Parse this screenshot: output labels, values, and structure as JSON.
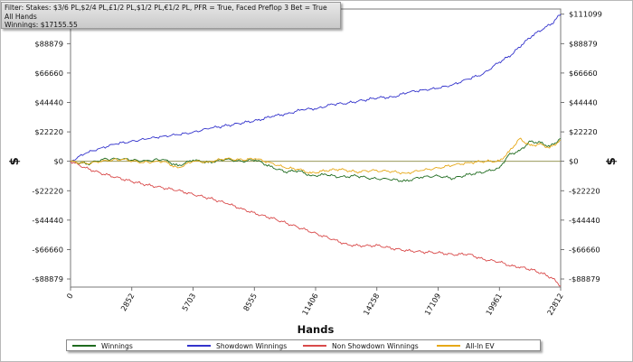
{
  "filter": {
    "line1": "Filter: Stakes: $3/6 PL,$2/4 PL,£1/2 PL,$1/2 PL,€1/2 PL, PFR = True, Faced Preflop 3 Bet = True",
    "line2": "All Hands",
    "line3": "Winnings: $17155.55"
  },
  "chart_data": {
    "type": "line",
    "xlabel": "Hands",
    "ylabel": "$",
    "xlim": [
      0,
      22812
    ],
    "ylim": [
      -95000,
      115000
    ],
    "x_ticks": [
      0,
      2852,
      5703,
      8555,
      11406,
      14258,
      17109,
      19961,
      22812
    ],
    "x_tick_labels": [
      "0",
      "2852",
      "5703",
      "8555",
      "11406",
      "14258",
      "17109",
      "19961",
      "22812"
    ],
    "y_ticks": [
      111099,
      88879,
      66660,
      44440,
      22220,
      0,
      -22220,
      -44440,
      -66660,
      -88879
    ],
    "y_tick_labels": [
      "$111099",
      "$88879",
      "$66660",
      "$44440",
      "$22220",
      "$0",
      "-$22220",
      "-$44440",
      "-$66660",
      "-$88879"
    ],
    "grid": false,
    "legend_position": "bottom",
    "series": [
      {
        "name": "Winnings",
        "color": "#1f6b1f",
        "points": [
          [
            0,
            0
          ],
          [
            800,
            -2000
          ],
          [
            1500,
            1500
          ],
          [
            2500,
            2000
          ],
          [
            3300,
            0
          ],
          [
            4300,
            1500
          ],
          [
            5000,
            -3500
          ],
          [
            5700,
            1000
          ],
          [
            6400,
            -1000
          ],
          [
            7200,
            1500
          ],
          [
            8000,
            0
          ],
          [
            8600,
            1200
          ],
          [
            9300,
            -4000
          ],
          [
            10000,
            -8000
          ],
          [
            10600,
            -7000
          ],
          [
            11200,
            -11000
          ],
          [
            11900,
            -10000
          ],
          [
            12500,
            -12000
          ],
          [
            13300,
            -11000
          ],
          [
            14000,
            -13000
          ],
          [
            14800,
            -13500
          ],
          [
            15600,
            -15000
          ],
          [
            16300,
            -12000
          ],
          [
            17100,
            -11000
          ],
          [
            17800,
            -13000
          ],
          [
            18500,
            -10000
          ],
          [
            19300,
            -8000
          ],
          [
            19961,
            -5000
          ],
          [
            20400,
            5000
          ],
          [
            20900,
            8000
          ],
          [
            21400,
            15000
          ],
          [
            21900,
            14000
          ],
          [
            22300,
            11000
          ],
          [
            22812,
            17155
          ]
        ]
      },
      {
        "name": "Showdown Winnings",
        "color": "#3333cc",
        "points": [
          [
            0,
            0
          ],
          [
            700,
            6000
          ],
          [
            1400,
            10000
          ],
          [
            2100,
            13000
          ],
          [
            2800,
            15000
          ],
          [
            3600,
            17000
          ],
          [
            4300,
            19000
          ],
          [
            5000,
            20000
          ],
          [
            5700,
            22000
          ],
          [
            6500,
            25000
          ],
          [
            7300,
            27000
          ],
          [
            8000,
            29000
          ],
          [
            8700,
            31000
          ],
          [
            9400,
            34000
          ],
          [
            10100,
            36000
          ],
          [
            10800,
            39000
          ],
          [
            11500,
            40000
          ],
          [
            12200,
            43000
          ],
          [
            12900,
            44000
          ],
          [
            13600,
            46000
          ],
          [
            14300,
            48000
          ],
          [
            15000,
            48500
          ],
          [
            15700,
            52000
          ],
          [
            16400,
            54000
          ],
          [
            17100,
            55000
          ],
          [
            17800,
            58000
          ],
          [
            18500,
            62000
          ],
          [
            19200,
            66000
          ],
          [
            19961,
            75000
          ],
          [
            20500,
            80000
          ],
          [
            21000,
            88000
          ],
          [
            21500,
            95000
          ],
          [
            22000,
            100000
          ],
          [
            22400,
            104000
          ],
          [
            22812,
            111099
          ]
        ]
      },
      {
        "name": "Non Showdown Winnings",
        "color": "#d94a4a",
        "points": [
          [
            0,
            0
          ],
          [
            700,
            -5000
          ],
          [
            1400,
            -9000
          ],
          [
            2100,
            -12000
          ],
          [
            2800,
            -15000
          ],
          [
            3600,
            -18000
          ],
          [
            4300,
            -20000
          ],
          [
            5000,
            -22000
          ],
          [
            5700,
            -25000
          ],
          [
            6500,
            -28000
          ],
          [
            7300,
            -32000
          ],
          [
            8000,
            -36000
          ],
          [
            8700,
            -40000
          ],
          [
            9400,
            -43000
          ],
          [
            10100,
            -47000
          ],
          [
            10800,
            -51000
          ],
          [
            11500,
            -55000
          ],
          [
            12200,
            -59000
          ],
          [
            12900,
            -63000
          ],
          [
            13600,
            -64000
          ],
          [
            14300,
            -63500
          ],
          [
            15000,
            -66000
          ],
          [
            15700,
            -67500
          ],
          [
            16400,
            -68500
          ],
          [
            17100,
            -69000
          ],
          [
            17800,
            -70500
          ],
          [
            18500,
            -70000
          ],
          [
            19200,
            -74000
          ],
          [
            19961,
            -76000
          ],
          [
            20500,
            -79000
          ],
          [
            21000,
            -80000
          ],
          [
            21500,
            -82000
          ],
          [
            22000,
            -85000
          ],
          [
            22400,
            -88000
          ],
          [
            22812,
            -94000
          ]
        ]
      },
      {
        "name": "All-In EV",
        "color": "#e6a817",
        "points": [
          [
            0,
            0
          ],
          [
            800,
            -2000
          ],
          [
            1500,
            500
          ],
          [
            2500,
            1500
          ],
          [
            3300,
            -1000
          ],
          [
            4300,
            0
          ],
          [
            5000,
            -5000
          ],
          [
            5700,
            0
          ],
          [
            6400,
            -500
          ],
          [
            7200,
            2000
          ],
          [
            8000,
            1000
          ],
          [
            8600,
            2000
          ],
          [
            9300,
            -1000
          ],
          [
            10000,
            -5000
          ],
          [
            10600,
            -6000
          ],
          [
            11200,
            -9000
          ],
          [
            11900,
            -7000
          ],
          [
            12500,
            -6000
          ],
          [
            13300,
            -8000
          ],
          [
            14000,
            -7000
          ],
          [
            14800,
            -7500
          ],
          [
            15600,
            -9000
          ],
          [
            16300,
            -7000
          ],
          [
            17100,
            -5000
          ],
          [
            17800,
            -3000
          ],
          [
            18500,
            -1000
          ],
          [
            19300,
            0
          ],
          [
            19961,
            0
          ],
          [
            20400,
            7000
          ],
          [
            20900,
            17000
          ],
          [
            21400,
            12000
          ],
          [
            21900,
            13000
          ],
          [
            22300,
            10000
          ],
          [
            22812,
            16000
          ]
        ]
      }
    ]
  }
}
